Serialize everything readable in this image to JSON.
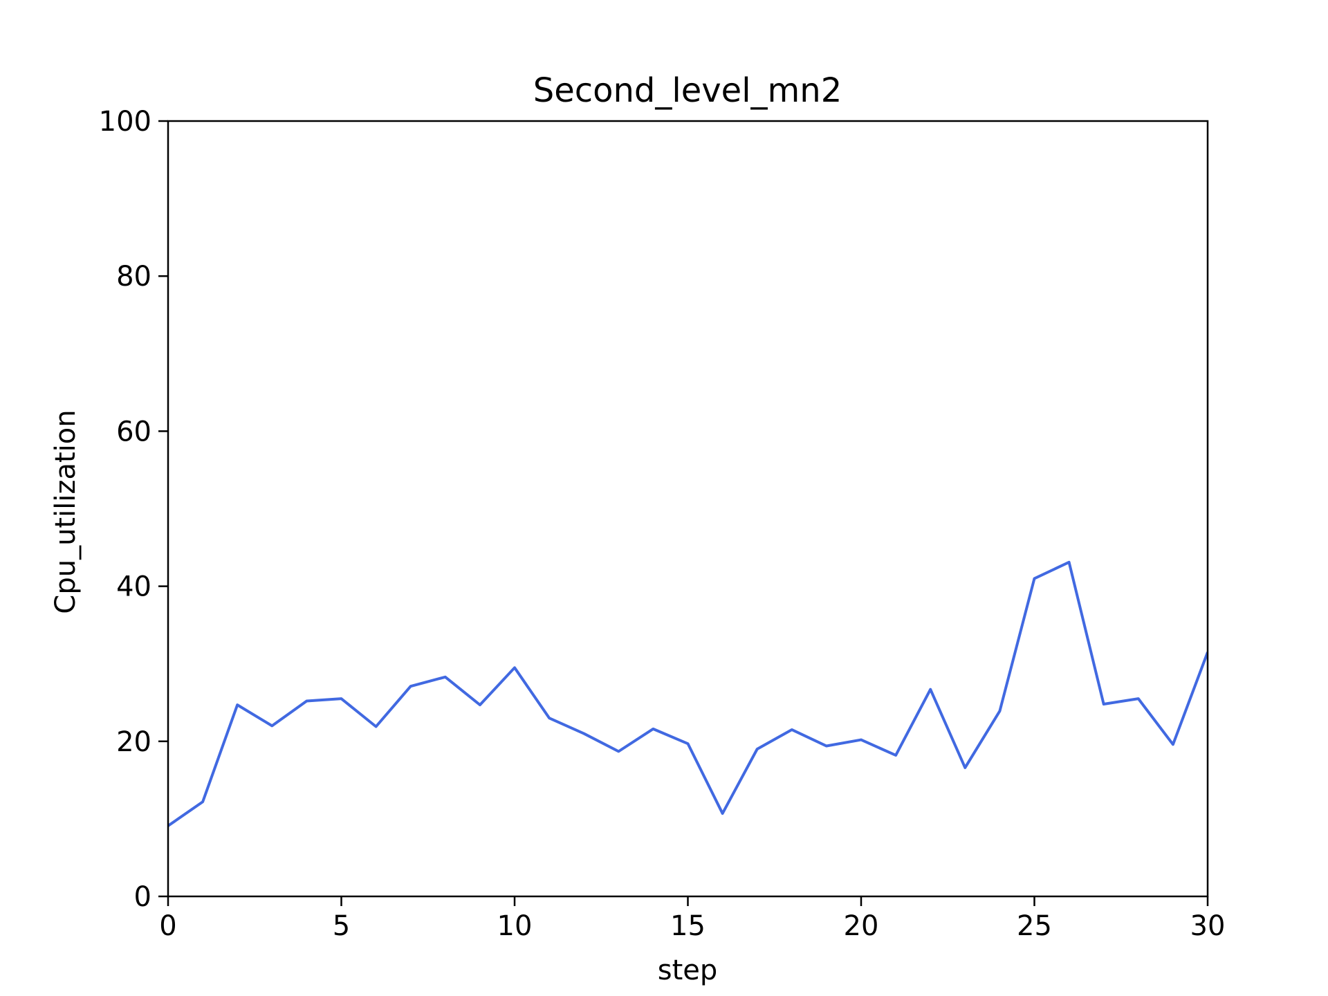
{
  "chart_data": {
    "type": "line",
    "title": "Second_level_mn2",
    "xlabel": "step",
    "ylabel": "Cpu_utilization",
    "xlim": [
      0,
      30
    ],
    "ylim": [
      0,
      100
    ],
    "xticks": [
      "0",
      "5",
      "10",
      "15",
      "20",
      "25",
      "30"
    ],
    "yticks": [
      "0",
      "20",
      "40",
      "60",
      "80",
      "100"
    ],
    "grid": false,
    "line_color": "#4169e1",
    "series": [
      {
        "x": [
          0,
          1,
          2,
          3,
          4,
          5,
          6,
          7,
          8,
          9,
          10,
          11,
          12,
          13,
          14,
          15,
          16,
          17,
          18,
          19,
          20,
          21,
          22,
          23,
          24,
          25,
          26,
          27,
          28,
          29,
          30
        ],
        "values": [
          9.1,
          12.2,
          24.7,
          22.0,
          25.2,
          25.5,
          21.9,
          27.1,
          28.3,
          24.7,
          29.5,
          23.0,
          21.0,
          18.7,
          21.6,
          19.7,
          10.7,
          19.0,
          21.5,
          19.4,
          20.2,
          18.2,
          26.7,
          16.6,
          23.9,
          41.0,
          43.1,
          24.8,
          25.5,
          19.6,
          31.5
        ]
      }
    ]
  }
}
